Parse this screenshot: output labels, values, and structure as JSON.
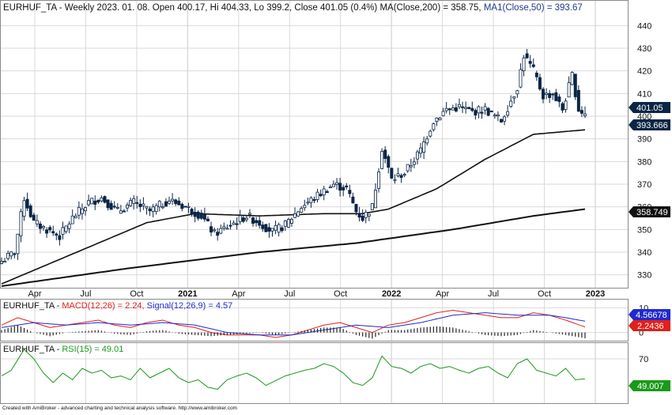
{
  "price_panel": {
    "title_prefix": "EURHUF_TA - Weekly 2023. 01. 08. Open 400.17, Hi 404.33, Lo 399.2, Close 401.05 (0.4%) MA(Close,200) = 358.75,",
    "title_ma50": "MA1(Close,50) = 393.67",
    "price_badge": "401.05",
    "ma50_badge": "393.666",
    "ma200_badge": "358.749",
    "badge_colors": {
      "price": "#0b2545",
      "ma50": "#0b2545",
      "ma200": "#111111"
    }
  },
  "macd_panel": {
    "title_prefix": "EURHUF_TA - ",
    "title_macd": "MACD(12,26) = 2.24,",
    "title_signal": "Signal(12,26,9) = 4.57",
    "signal_badge": "4.56678",
    "macd_badge": "2.2436",
    "colors": {
      "macd": "#e0201b",
      "signal": "#1f2ad0"
    }
  },
  "rsi_panel": {
    "title_prefix": "EURHUF_TA - ",
    "title_rsi": "RSI(15) = 49.01",
    "rsi_badge": "49.007",
    "colors": {
      "rsi": "#1a9a1a"
    }
  },
  "footer": "Created with AmiBroker - advanced charting and technical analysis software. http://www.amibroker.com",
  "chart_data": [
    {
      "type": "candlestick",
      "title": "EURHUF_TA - Weekly 2023. 01. 08. Open 400.17, Hi 404.33, Lo 399.2, Close 401.05 (0.4%) MA(Close,200) = 358.75, MA1(Close,50) = 393.67",
      "x_tick_labels": [
        "Apr",
        "Jul",
        "Oct",
        "2021",
        "Apr",
        "Jul",
        "Oct",
        "2022",
        "Apr",
        "Jul",
        "Oct",
        "2023"
      ],
      "y_ticks": [
        330,
        340,
        350,
        360,
        370,
        380,
        390,
        400,
        410,
        420,
        430,
        440
      ],
      "ylim": [
        325,
        445
      ],
      "grid": true,
      "close_anchors": [
        [
          0,
          336
        ],
        [
          4,
          340
        ],
        [
          7,
          364
        ],
        [
          10,
          353
        ],
        [
          14,
          350
        ],
        [
          18,
          347
        ],
        [
          22,
          355
        ],
        [
          27,
          362
        ],
        [
          31,
          364
        ],
        [
          36,
          358
        ],
        [
          41,
          362
        ],
        [
          46,
          358
        ],
        [
          52,
          363
        ],
        [
          57,
          360
        ],
        [
          62,
          356
        ],
        [
          66,
          348
        ],
        [
          71,
          352
        ],
        [
          76,
          356
        ],
        [
          80,
          353
        ],
        [
          84,
          349
        ],
        [
          88,
          352
        ],
        [
          93,
          360
        ],
        [
          98,
          365
        ],
        [
          103,
          370
        ],
        [
          107,
          368
        ],
        [
          110,
          358
        ],
        [
          112,
          355
        ],
        [
          115,
          360
        ],
        [
          118,
          386
        ],
        [
          121,
          372
        ],
        [
          125,
          375
        ],
        [
          130,
          385
        ],
        [
          134,
          398
        ],
        [
          138,
          403
        ],
        [
          142,
          404
        ],
        [
          146,
          402
        ],
        [
          150,
          403
        ],
        [
          155,
          398
        ],
        [
          160,
          413
        ],
        [
          162,
          427
        ],
        [
          165,
          420
        ],
        [
          168,
          409
        ],
        [
          171,
          410
        ],
        [
          174,
          403
        ],
        [
          177,
          418
        ],
        [
          179,
          403
        ],
        [
          181,
          401
        ]
      ],
      "series": [
        {
          "name": "MA(Close,200)",
          "values": [
            [
              0,
              325
            ],
            [
              40,
              333
            ],
            [
              80,
              340
            ],
            [
              110,
              344
            ],
            [
              140,
              350
            ],
            [
              165,
              356
            ],
            [
              181,
              359
            ]
          ]
        },
        {
          "name": "MA1(Close,50)",
          "values": [
            [
              0,
              326
            ],
            [
              20,
              338
            ],
            [
              45,
              353
            ],
            [
              60,
              357
            ],
            [
              80,
              356
            ],
            [
              100,
              357
            ],
            [
              112,
              357
            ],
            [
              120,
              359
            ],
            [
              135,
              368
            ],
            [
              150,
              381
            ],
            [
              165,
              392
            ],
            [
              181,
              394
            ]
          ]
        }
      ],
      "last_values": {
        "Open": 400.17,
        "Hi": 404.33,
        "Lo": 399.2,
        "Close": 401.05
      }
    },
    {
      "type": "line",
      "title": "EURHUF_TA - MACD(12,26) = 2.24, Signal(12,26,9) = 4.57",
      "y_ticks": [
        0,
        10
      ],
      "ylim": [
        -3,
        13
      ],
      "series": [
        {
          "name": "MACD(12,26)",
          "values": [
            [
              0,
              3
            ],
            [
              5,
              6
            ],
            [
              10,
              4
            ],
            [
              15,
              2
            ],
            [
              20,
              3
            ],
            [
              25,
              4
            ],
            [
              30,
              5
            ],
            [
              35,
              3
            ],
            [
              40,
              2
            ],
            [
              45,
              4
            ],
            [
              50,
              5
            ],
            [
              55,
              3
            ],
            [
              60,
              2
            ],
            [
              65,
              0
            ],
            [
              70,
              -1
            ],
            [
              75,
              -1
            ],
            [
              80,
              -1
            ],
            [
              85,
              -2
            ],
            [
              90,
              -1
            ],
            [
              95,
              1
            ],
            [
              100,
              3
            ],
            [
              105,
              4
            ],
            [
              110,
              2
            ],
            [
              115,
              0
            ],
            [
              120,
              3
            ],
            [
              125,
              4
            ],
            [
              130,
              6
            ],
            [
              135,
              8
            ],
            [
              140,
              9
            ],
            [
              145,
              8
            ],
            [
              150,
              7
            ],
            [
              155,
              6
            ],
            [
              160,
              6
            ],
            [
              165,
              8
            ],
            [
              170,
              7
            ],
            [
              175,
              5
            ],
            [
              181,
              2.24
            ]
          ]
        },
        {
          "name": "Signal(12,26,9)",
          "values": [
            [
              0,
              2
            ],
            [
              10,
              4
            ],
            [
              20,
              3
            ],
            [
              30,
              4
            ],
            [
              40,
              3
            ],
            [
              50,
              4
            ],
            [
              60,
              3
            ],
            [
              70,
              0
            ],
            [
              80,
              -1
            ],
            [
              90,
              -1
            ],
            [
              100,
              1
            ],
            [
              110,
              3
            ],
            [
              120,
              2
            ],
            [
              130,
              4
            ],
            [
              140,
              7
            ],
            [
              150,
              8
            ],
            [
              160,
              7
            ],
            [
              165,
              7
            ],
            [
              170,
              7
            ],
            [
              175,
              6
            ],
            [
              181,
              4.57
            ]
          ]
        }
      ]
    },
    {
      "type": "line",
      "title": "EURHUF_TA - RSI(15) = 49.01",
      "y_ticks": [
        70
      ],
      "ylim": [
        25,
        85
      ],
      "series": [
        {
          "name": "RSI(15)",
          "values": [
            [
              0,
              52
            ],
            [
              3,
              58
            ],
            [
              7,
              80
            ],
            [
              10,
              70
            ],
            [
              13,
              55
            ],
            [
              16,
              45
            ],
            [
              19,
              55
            ],
            [
              22,
              48
            ],
            [
              25,
              60
            ],
            [
              28,
              55
            ],
            [
              31,
              58
            ],
            [
              34,
              50
            ],
            [
              37,
              52
            ],
            [
              40,
              48
            ],
            [
              43,
              60
            ],
            [
              46,
              50
            ],
            [
              49,
              55
            ],
            [
              52,
              60
            ],
            [
              55,
              50
            ],
            [
              58,
              45
            ],
            [
              61,
              48
            ],
            [
              64,
              40
            ],
            [
              67,
              38
            ],
            [
              70,
              48
            ],
            [
              73,
              52
            ],
            [
              76,
              55
            ],
            [
              79,
              50
            ],
            [
              82,
              42
            ],
            [
              85,
              47
            ],
            [
              88,
              52
            ],
            [
              91,
              55
            ],
            [
              94,
              58
            ],
            [
              97,
              60
            ],
            [
              100,
              65
            ],
            [
              103,
              62
            ],
            [
              106,
              55
            ],
            [
              109,
              45
            ],
            [
              112,
              42
            ],
            [
              115,
              50
            ],
            [
              118,
              73
            ],
            [
              121,
              62
            ],
            [
              124,
              60
            ],
            [
              127,
              55
            ],
            [
              130,
              62
            ],
            [
              133,
              65
            ],
            [
              136,
              60
            ],
            [
              139,
              62
            ],
            [
              142,
              58
            ],
            [
              145,
              55
            ],
            [
              148,
              60
            ],
            [
              151,
              62
            ],
            [
              154,
              55
            ],
            [
              157,
              50
            ],
            [
              160,
              65
            ],
            [
              163,
              70
            ],
            [
              166,
              58
            ],
            [
              169,
              55
            ],
            [
              172,
              52
            ],
            [
              175,
              60
            ],
            [
              178,
              48
            ],
            [
              181,
              49.01
            ]
          ]
        }
      ]
    }
  ]
}
